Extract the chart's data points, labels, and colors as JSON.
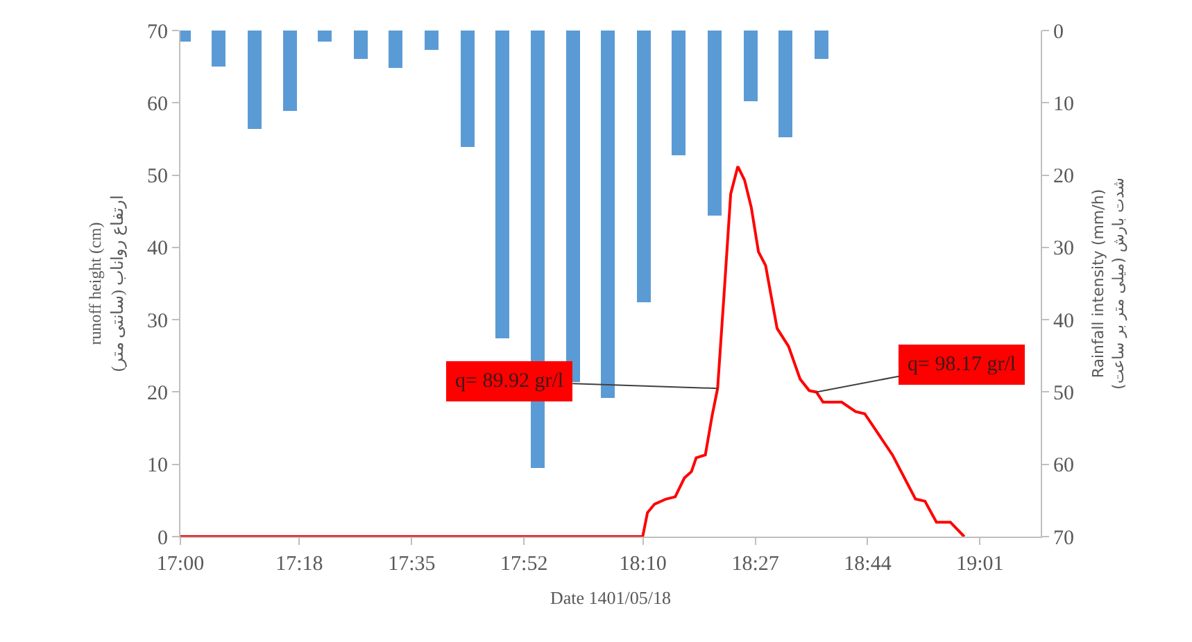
{
  "chart_data": {
    "type": "line",
    "xlabel": "Date 1401/05/18",
    "ylabel": "runoff height (cm)\n(ارتفاع رواناب (سانتی متر",
    "y2label": "Rainfall intensity (mm/h)\n(شدت بارش (میلی متر بر ساعت",
    "xlim": [
      17.0,
      19.17
    ],
    "xticks": [
      {
        "value": 17.0,
        "label": "17:00"
      },
      {
        "value": 17.3,
        "label": "17:18"
      },
      {
        "value": 17.5833,
        "label": "17:35"
      },
      {
        "value": 17.8667,
        "label": "17:52"
      },
      {
        "value": 18.1667,
        "label": "18:10"
      },
      {
        "value": 18.45,
        "label": "18:27"
      },
      {
        "value": 18.7333,
        "label": "18:44"
      },
      {
        "value": 19.0167,
        "label": "19:01"
      }
    ],
    "ylim": [
      0,
      70
    ],
    "yticks": [
      0,
      10,
      20,
      30,
      40,
      50,
      60,
      70
    ],
    "y2lim": [
      70,
      0
    ],
    "y2ticks": [
      0,
      10,
      20,
      30,
      40,
      50,
      60,
      70
    ],
    "grid": false,
    "marker": "none",
    "line_style": "solid",
    "series": [
      {
        "type": "bar",
        "axis": "y2",
        "color": "#5b9bd5",
        "x": [
          17.009,
          17.096,
          17.188,
          17.276,
          17.364,
          17.455,
          17.542,
          17.633,
          17.724,
          17.812,
          17.901,
          17.99,
          18.078,
          18.169,
          18.256,
          18.347,
          18.438,
          18.526,
          18.617
        ],
        "values": [
          1.5,
          5.0,
          13.6,
          11.1,
          1.5,
          3.9,
          5.2,
          2.7,
          16.1,
          42.6,
          60.5,
          48.6,
          50.8,
          37.6,
          17.3,
          25.6,
          9.8,
          14.8,
          3.9
        ]
      },
      {
        "color": "#ff0000",
        "x": [
          17.0,
          18.166,
          18.178,
          18.196,
          18.225,
          18.248,
          18.271,
          18.289,
          18.301,
          18.324,
          18.341,
          18.355,
          18.371,
          18.388,
          18.406,
          18.423,
          18.44,
          18.458,
          18.476,
          18.505,
          18.534,
          18.563,
          18.586,
          18.604,
          18.621,
          18.668,
          18.703,
          18.726,
          18.796,
          18.854,
          18.878,
          18.907,
          18.942,
          18.977
        ],
        "values": [
          0,
          0,
          3.3,
          4.5,
          5.2,
          5.5,
          8.1,
          9.0,
          10.9,
          11.3,
          16.7,
          20.5,
          33.3,
          47.4,
          51.2,
          49.3,
          45.5,
          39.4,
          37.5,
          28.8,
          26.3,
          21.8,
          20.2,
          20.0,
          18.6,
          18.6,
          17.3,
          17.0,
          11.3,
          5.2,
          4.9,
          2.0,
          2.0,
          0
        ]
      }
    ],
    "annotations": [
      {
        "text": "q= 89.92 gr/l",
        "x": 18.355,
        "y": 20.5
      },
      {
        "text": "q= 98.17 gr/l",
        "x": 18.604,
        "y": 20.0
      }
    ]
  }
}
